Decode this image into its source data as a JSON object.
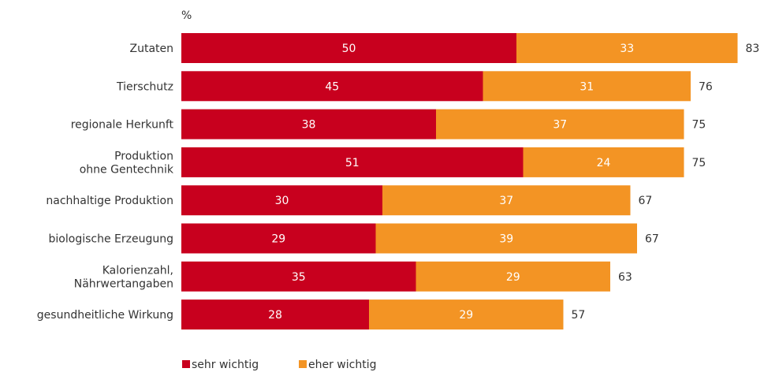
{
  "chart_data": {
    "type": "bar",
    "orientation": "horizontal",
    "stacked": true,
    "unit": "%",
    "categories": [
      [
        "Zutaten"
      ],
      [
        "Tierschutz"
      ],
      [
        "regionale Herkunft"
      ],
      [
        "Produktion",
        "ohne Gentechnik"
      ],
      [
        "nachhaltige Produktion"
      ],
      [
        "biologische Erzeugung"
      ],
      [
        "Kalorienzahl,",
        "Nährwertangaben"
      ],
      [
        "gesundheitliche Wirkung"
      ]
    ],
    "series": [
      {
        "name": "sehr wichtig",
        "color": "#c8001e",
        "values": [
          50,
          45,
          38,
          51,
          30,
          29,
          35,
          28
        ]
      },
      {
        "name": "eher wichtig",
        "color": "#f39424",
        "values": [
          33,
          31,
          37,
          24,
          37,
          39,
          29,
          29
        ]
      }
    ],
    "totals": [
      83,
      76,
      75,
      75,
      67,
      67,
      63,
      57
    ],
    "xlim": [
      0,
      100
    ],
    "grid": false,
    "legend_position": "bottom-left"
  }
}
